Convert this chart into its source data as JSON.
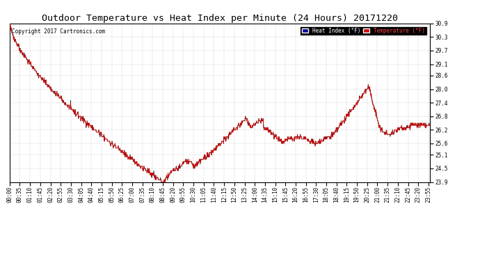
{
  "title": "Outdoor Temperature vs Heat Index per Minute (24 Hours) 20171220",
  "copyright_text": "Copyright 2017 Cartronics.com",
  "legend_labels": [
    "Heat Index (°F)",
    "Temperature (°F)"
  ],
  "legend_colors_bg": [
    "#000099",
    "#cc0000"
  ],
  "line_color_heat": "#222222",
  "line_color_temp": "#cc0000",
  "background_color": "#ffffff",
  "plot_bg_color": "#ffffff",
  "grid_color": "#999999",
  "ylim": [
    23.9,
    30.9
  ],
  "yticks": [
    23.9,
    24.5,
    25.1,
    25.6,
    26.2,
    26.8,
    27.4,
    28.0,
    28.6,
    29.1,
    29.7,
    30.3,
    30.9
  ],
  "title_fontsize": 9.5,
  "tick_fontsize": 5.5,
  "copyright_fontsize": 5.5
}
